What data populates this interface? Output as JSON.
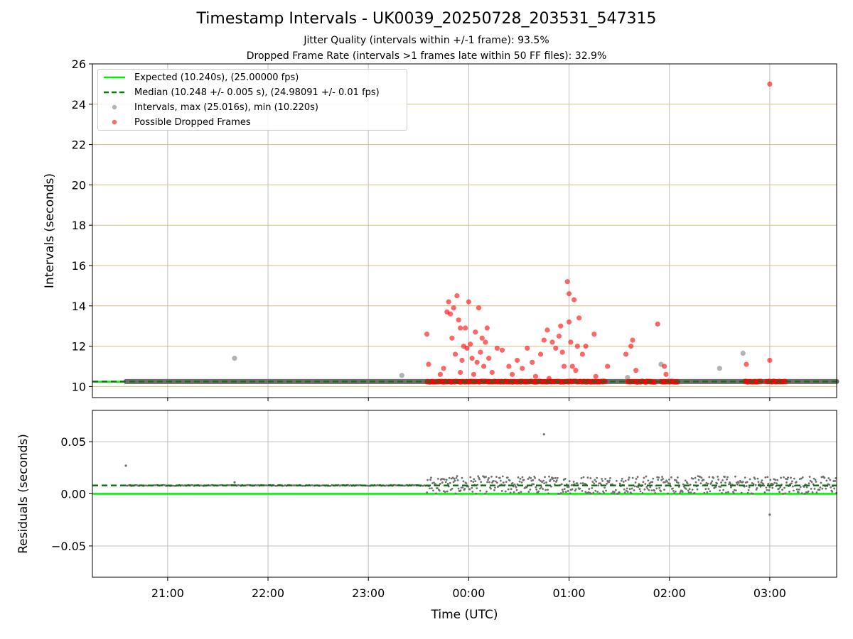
{
  "chart_data": [
    {
      "type": "scatter",
      "title": "Timestamp Intervals - UK0039_20250728_203531_547315",
      "subtitle_lines": [
        "Jitter Quality (intervals within +/-1 frame): 93.5%",
        "Dropped Frame Rate (intervals >1 frames late within 50 FF files): 32.9%"
      ],
      "ylabel": "Intervals (seconds)",
      "ylim": [
        9.45,
        26
      ],
      "yticks": [
        10,
        12,
        14,
        16,
        18,
        20,
        22,
        24,
        26
      ],
      "xlim": [
        "20:15",
        "03:40"
      ],
      "grid": true,
      "legend_position": "upper-left",
      "legend": [
        "Expected (10.240s), (25.00000 fps)",
        "Median (10.248 +/- 0.005 s), (24.98091 +/- 0.01 fps)",
        "Intervals, max (25.016s), min (10.220s)",
        "Possible Dropped Frames"
      ],
      "expected_interval": 10.24,
      "median_interval": 10.248,
      "series": [
        {
          "name": "Intervals, max (25.016s), min (10.220s)",
          "style": "gray-points",
          "baseline_range": [
            "20:35",
            "03:40"
          ],
          "baseline_value": 10.248,
          "points": [
            {
              "x": "21:40",
              "y": 11.4
            },
            {
              "x": "23:20",
              "y": 10.55
            },
            {
              "x": "01:35",
              "y": 10.45
            },
            {
              "x": "01:55",
              "y": 11.1
            },
            {
              "x": "02:30",
              "y": 10.9
            },
            {
              "x": "02:44",
              "y": 11.65
            }
          ]
        },
        {
          "name": "Possible Dropped Frames",
          "style": "red-points",
          "baseline_clusters": [
            [
              "23:35",
              "00:12"
            ],
            [
              "00:12",
              "00:57"
            ],
            [
              "00:57",
              "01:22"
            ],
            [
              "01:35",
              "01:52"
            ],
            [
              "01:55",
              "02:05"
            ],
            [
              "02:45",
              "02:55"
            ],
            [
              "02:58",
              "03:10"
            ]
          ],
          "baseline_value": 10.24,
          "points": [
            {
              "x": "23:35",
              "y": 12.6
            },
            {
              "x": "23:36",
              "y": 11.1
            },
            {
              "x": "23:43",
              "y": 10.6
            },
            {
              "x": "23:45",
              "y": 10.9
            },
            {
              "x": "23:47",
              "y": 13.7
            },
            {
              "x": "23:48",
              "y": 14.2
            },
            {
              "x": "23:49",
              "y": 13.6
            },
            {
              "x": "23:50",
              "y": 12.4
            },
            {
              "x": "23:51",
              "y": 13.9
            },
            {
              "x": "23:52",
              "y": 11.6
            },
            {
              "x": "23:53",
              "y": 14.5
            },
            {
              "x": "23:54",
              "y": 13.3
            },
            {
              "x": "23:55",
              "y": 12.9
            },
            {
              "x": "23:55",
              "y": 10.7
            },
            {
              "x": "23:56",
              "y": 11.3
            },
            {
              "x": "23:57",
              "y": 12.0
            },
            {
              "x": "23:58",
              "y": 12.9
            },
            {
              "x": "23:59",
              "y": 11.9
            },
            {
              "x": "00:00",
              "y": 14.2
            },
            {
              "x": "00:01",
              "y": 12.1
            },
            {
              "x": "00:02",
              "y": 11.4
            },
            {
              "x": "00:03",
              "y": 10.6
            },
            {
              "x": "00:04",
              "y": 12.7
            },
            {
              "x": "00:05",
              "y": 11.2
            },
            {
              "x": "00:06",
              "y": 13.9
            },
            {
              "x": "00:07",
              "y": 11.7
            },
            {
              "x": "00:08",
              "y": 12.4
            },
            {
              "x": "00:09",
              "y": 11.0
            },
            {
              "x": "00:10",
              "y": 12.2
            },
            {
              "x": "00:11",
              "y": 12.9
            },
            {
              "x": "00:12",
              "y": 11.4
            },
            {
              "x": "00:14",
              "y": 10.7
            },
            {
              "x": "00:17",
              "y": 11.9
            },
            {
              "x": "00:20",
              "y": 11.8
            },
            {
              "x": "00:24",
              "y": 11.0
            },
            {
              "x": "00:26",
              "y": 10.6
            },
            {
              "x": "00:29",
              "y": 11.3
            },
            {
              "x": "00:32",
              "y": 10.9
            },
            {
              "x": "00:35",
              "y": 11.9
            },
            {
              "x": "00:38",
              "y": 11.2
            },
            {
              "x": "00:40",
              "y": 10.5
            },
            {
              "x": "00:43",
              "y": 11.6
            },
            {
              "x": "00:45",
              "y": 12.3
            },
            {
              "x": "00:47",
              "y": 12.8
            },
            {
              "x": "00:48",
              "y": 10.4
            },
            {
              "x": "00:50",
              "y": 12.2
            },
            {
              "x": "00:52",
              "y": 11.9
            },
            {
              "x": "00:54",
              "y": 12.5
            },
            {
              "x": "00:55",
              "y": 13.0
            },
            {
              "x": "00:56",
              "y": 11.7
            },
            {
              "x": "00:57",
              "y": 11.0
            },
            {
              "x": "00:59",
              "y": 15.2
            },
            {
              "x": "01:00",
              "y": 14.6
            },
            {
              "x": "01:00",
              "y": 13.2
            },
            {
              "x": "01:01",
              "y": 12.2
            },
            {
              "x": "01:02",
              "y": 11.0
            },
            {
              "x": "01:03",
              "y": 14.3
            },
            {
              "x": "01:04",
              "y": 10.8
            },
            {
              "x": "01:05",
              "y": 12.0
            },
            {
              "x": "01:06",
              "y": 13.4
            },
            {
              "x": "01:08",
              "y": 11.6
            },
            {
              "x": "01:10",
              "y": 12.0
            },
            {
              "x": "01:15",
              "y": 12.6
            },
            {
              "x": "01:16",
              "y": 10.5
            },
            {
              "x": "01:23",
              "y": 11.0
            },
            {
              "x": "01:34",
              "y": 11.6
            },
            {
              "x": "01:37",
              "y": 12.0
            },
            {
              "x": "01:38",
              "y": 12.3
            },
            {
              "x": "01:40",
              "y": 10.8
            },
            {
              "x": "01:53",
              "y": 13.1
            },
            {
              "x": "01:57",
              "y": 11.0
            },
            {
              "x": "01:58",
              "y": 10.6
            },
            {
              "x": "02:46",
              "y": 11.1
            },
            {
              "x": "03:00",
              "y": 11.3
            },
            {
              "x": "03:00",
              "y": 25.0
            }
          ]
        }
      ]
    },
    {
      "type": "scatter",
      "ylabel": "Residuals (seconds)",
      "xlabel": "Time (UTC)",
      "ylim": [
        -0.08,
        0.08
      ],
      "yticks": [
        0.05,
        0.0,
        -0.05
      ],
      "ytick_labels": [
        "0.05",
        "0.00",
        "−0.05"
      ],
      "xticks": [
        "21:00",
        "22:00",
        "23:00",
        "00:00",
        "01:00",
        "02:00",
        "03:00"
      ],
      "xlim": [
        "20:15",
        "03:40"
      ],
      "grid": true,
      "expected_residual": 0.0,
      "median_residual": 0.008,
      "series": [
        {
          "name": "Residuals",
          "style": "gray-points",
          "stable_range": [
            "20:35",
            "23:35"
          ],
          "stable_value": 0.008,
          "spread_range": [
            "23:35",
            "03:40"
          ],
          "spread_values": [
            0.0,
            0.017
          ],
          "outliers": [
            {
              "x": "20:35",
              "y": 0.027
            },
            {
              "x": "21:40",
              "y": 0.011
            },
            {
              "x": "00:45",
              "y": 0.057
            },
            {
              "x": "03:00",
              "y": -0.02
            }
          ]
        }
      ]
    }
  ]
}
